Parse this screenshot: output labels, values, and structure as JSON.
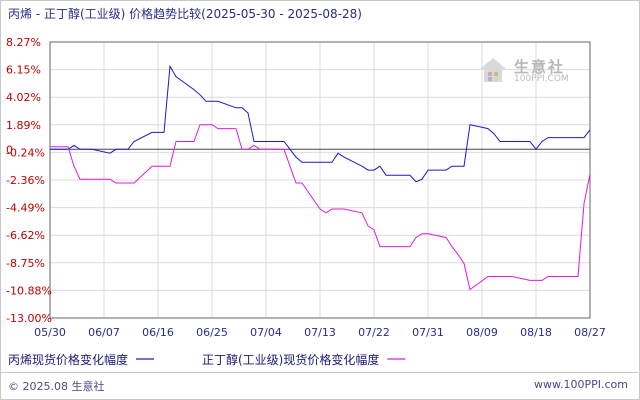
{
  "colors": {
    "series1": "#1a1acc",
    "series2": "#e01ce0",
    "axis": "#555555",
    "grid": "#dcdcdc",
    "zero": "#444444"
  },
  "chart_data": {
    "type": "line",
    "title": "丙烯 - 正丁醇(工业级) 价格趋势比较(2025-05-30 - 2025-08-28)",
    "date_range": {
      "start": "2025-05-30",
      "end": "2025-08-28"
    },
    "x_tick_labels": [
      "05/30",
      "06/07",
      "06/16",
      "06/25",
      "07/04",
      "07/13",
      "07/22",
      "07/31",
      "08/09",
      "08/18",
      "08/27"
    ],
    "y_tick_labels": [
      "8.27%",
      "6.15%",
      "4.02%",
      "1.89%",
      "-0.24%",
      "-2.36%",
      "-4.49%",
      "-6.62%",
      "-8.75%",
      "-10.88%",
      "-13.00%"
    ],
    "ylim": [
      -13.0,
      8.27
    ],
    "grid": true,
    "legend_position": "bottom",
    "zero_marker": "0",
    "series": [
      {
        "name": "丙烯现货价格变化幅度",
        "x": [
          "2025-05-30",
          "2025-06-02",
          "2025-06-03",
          "2025-06-04",
          "2025-06-05",
          "2025-06-06",
          "2025-06-09",
          "2025-06-10",
          "2025-06-11",
          "2025-06-12",
          "2025-06-13",
          "2025-06-16",
          "2025-06-17",
          "2025-06-18",
          "2025-06-19",
          "2025-06-20",
          "2025-06-23",
          "2025-06-24",
          "2025-06-25",
          "2025-06-26",
          "2025-06-27",
          "2025-06-30",
          "2025-07-01",
          "2025-07-02",
          "2025-07-03",
          "2025-07-04",
          "2025-07-07",
          "2025-07-08",
          "2025-07-09",
          "2025-07-10",
          "2025-07-11",
          "2025-07-14",
          "2025-07-15",
          "2025-07-16",
          "2025-07-17",
          "2025-07-18",
          "2025-07-21",
          "2025-07-22",
          "2025-07-23",
          "2025-07-24",
          "2025-07-25",
          "2025-07-28",
          "2025-07-29",
          "2025-07-30",
          "2025-07-31",
          "2025-08-01",
          "2025-08-04",
          "2025-08-05",
          "2025-08-06",
          "2025-08-07",
          "2025-08-08",
          "2025-08-11",
          "2025-08-12",
          "2025-08-13",
          "2025-08-14",
          "2025-08-15",
          "2025-08-18",
          "2025-08-19",
          "2025-08-20",
          "2025-08-21",
          "2025-08-22",
          "2025-08-25",
          "2025-08-26",
          "2025-08-27",
          "2025-08-28"
        ],
        "values": [
          0.0,
          0.0,
          0.3,
          0.0,
          0.0,
          0.0,
          -0.3,
          0.0,
          0.0,
          0.0,
          0.6,
          1.3,
          1.3,
          1.3,
          6.4,
          5.6,
          4.6,
          4.2,
          3.7,
          3.7,
          3.7,
          3.2,
          3.2,
          2.8,
          0.6,
          0.6,
          0.6,
          0.6,
          0.0,
          -0.6,
          -1.0,
          -1.0,
          -1.0,
          -1.0,
          -0.3,
          -0.6,
          -1.3,
          -1.6,
          -1.6,
          -1.3,
          -2.0,
          -2.0,
          -2.0,
          -2.5,
          -2.3,
          -1.6,
          -1.6,
          -1.3,
          -1.3,
          -1.3,
          1.9,
          1.6,
          1.2,
          0.6,
          0.6,
          0.6,
          0.6,
          0.0,
          0.6,
          0.9,
          0.9,
          0.9,
          0.9,
          0.9,
          1.5
        ]
      },
      {
        "name": "正丁醇(工业级)现货价格变化幅度",
        "x": [
          "2025-05-30",
          "2025-06-02",
          "2025-06-03",
          "2025-06-04",
          "2025-06-05",
          "2025-06-06",
          "2025-06-09",
          "2025-06-10",
          "2025-06-11",
          "2025-06-12",
          "2025-06-13",
          "2025-06-16",
          "2025-06-17",
          "2025-06-18",
          "2025-06-19",
          "2025-06-20",
          "2025-06-23",
          "2025-06-24",
          "2025-06-25",
          "2025-06-26",
          "2025-06-27",
          "2025-06-30",
          "2025-07-01",
          "2025-07-02",
          "2025-07-03",
          "2025-07-04",
          "2025-07-07",
          "2025-07-08",
          "2025-07-09",
          "2025-07-10",
          "2025-07-11",
          "2025-07-14",
          "2025-07-15",
          "2025-07-16",
          "2025-07-17",
          "2025-07-18",
          "2025-07-21",
          "2025-07-22",
          "2025-07-23",
          "2025-07-24",
          "2025-07-25",
          "2025-07-28",
          "2025-07-29",
          "2025-07-30",
          "2025-07-31",
          "2025-08-01",
          "2025-08-04",
          "2025-08-05",
          "2025-08-06",
          "2025-08-07",
          "2025-08-08",
          "2025-08-11",
          "2025-08-12",
          "2025-08-13",
          "2025-08-14",
          "2025-08-15",
          "2025-08-18",
          "2025-08-19",
          "2025-08-20",
          "2025-08-21",
          "2025-08-22",
          "2025-08-25",
          "2025-08-26",
          "2025-08-27",
          "2025-08-28"
        ],
        "values": [
          0.2,
          0.2,
          -1.3,
          -2.3,
          -2.3,
          -2.3,
          -2.3,
          -2.6,
          -2.6,
          -2.6,
          -2.6,
          -1.3,
          -1.3,
          -1.3,
          -1.3,
          0.6,
          0.6,
          1.9,
          1.9,
          1.9,
          1.6,
          1.6,
          0.0,
          0.0,
          0.3,
          0.0,
          0.0,
          0.0,
          -1.3,
          -2.6,
          -2.6,
          -4.6,
          -4.9,
          -4.6,
          -4.6,
          -4.6,
          -4.9,
          -5.9,
          -6.2,
          -7.5,
          -7.5,
          -7.5,
          -7.5,
          -6.8,
          -6.5,
          -6.5,
          -6.8,
          -7.5,
          -8.1,
          -8.8,
          -10.8,
          -9.8,
          -9.8,
          -9.8,
          -9.8,
          -9.8,
          -10.1,
          -10.1,
          -10.1,
          -9.8,
          -9.8,
          -9.8,
          -9.8,
          -4.2,
          -1.9
        ]
      }
    ]
  },
  "logo": {
    "text": "生意社",
    "sub": "100PPI.COM"
  },
  "footer": {
    "copyright": "© 2025.08 生意社",
    "url": "www.100PPI.com"
  }
}
